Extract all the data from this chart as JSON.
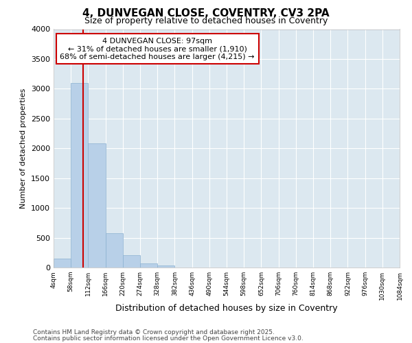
{
  "title1": "4, DUNVEGAN CLOSE, COVENTRY, CV3 2PA",
  "title2": "Size of property relative to detached houses in Coventry",
  "xlabel": "Distribution of detached houses by size in Coventry",
  "ylabel": "Number of detached properties",
  "annotation_title": "4 DUNVEGAN CLOSE: 97sqm",
  "annotation_line1": "← 31% of detached houses are smaller (1,910)",
  "annotation_line2": "68% of semi-detached houses are larger (4,215) →",
  "footer1": "Contains HM Land Registry data © Crown copyright and database right 2025.",
  "footer2": "Contains public sector information licensed under the Open Government Licence v3.0.",
  "bar_color": "#b8d0e8",
  "bar_edge_color": "#8ab0d0",
  "vline_color": "#cc0000",
  "vline_x": 97,
  "annotation_box_color": "#cc0000",
  "plot_bg_color": "#dce8f0",
  "fig_bg_color": "#ffffff",
  "ylim": [
    0,
    4000
  ],
  "yticks": [
    0,
    500,
    1000,
    1500,
    2000,
    2500,
    3000,
    3500,
    4000
  ],
  "bins": [
    4,
    58,
    112,
    166,
    220,
    274,
    328,
    382,
    436,
    490,
    544,
    598,
    652,
    706,
    760,
    814,
    868,
    922,
    976,
    1030,
    1084
  ],
  "bin_labels": [
    "4sqm",
    "58sqm",
    "112sqm",
    "166sqm",
    "220sqm",
    "274sqm",
    "328sqm",
    "382sqm",
    "436sqm",
    "490sqm",
    "544sqm",
    "598sqm",
    "652sqm",
    "706sqm",
    "760sqm",
    "814sqm",
    "868sqm",
    "922sqm",
    "976sqm",
    "1030sqm",
    "1084sqm"
  ],
  "bar_heights": [
    150,
    3100,
    2080,
    575,
    205,
    70,
    35,
    5,
    0,
    0,
    0,
    0,
    0,
    0,
    0,
    0,
    0,
    0,
    0,
    0
  ]
}
